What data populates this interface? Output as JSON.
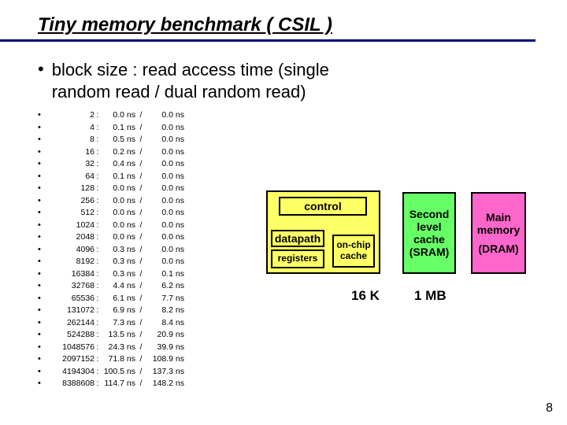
{
  "title": "Tiny memory benchmark ( CSIL )",
  "subtitle_line1": "block size : read access time (single",
  "subtitle_line2": "random read / dual random read)",
  "rows": [
    {
      "size": "2",
      "v1": "0.0 ns",
      "v2": "0.0 ns"
    },
    {
      "size": "4",
      "v1": "0.1 ns",
      "v2": "0.0 ns"
    },
    {
      "size": "8",
      "v1": "0.5 ns",
      "v2": "0.0 ns"
    },
    {
      "size": "16",
      "v1": "0.2 ns",
      "v2": "0.0 ns"
    },
    {
      "size": "32",
      "v1": "0.4 ns",
      "v2": "0.0 ns"
    },
    {
      "size": "64",
      "v1": "0.1 ns",
      "v2": "0.0 ns"
    },
    {
      "size": "128",
      "v1": "0.0 ns",
      "v2": "0.0 ns"
    },
    {
      "size": "256",
      "v1": "0.0 ns",
      "v2": "0.0 ns"
    },
    {
      "size": "512",
      "v1": "0.0 ns",
      "v2": "0.0 ns"
    },
    {
      "size": "1024",
      "v1": "0.0 ns",
      "v2": "0.0 ns"
    },
    {
      "size": "2048",
      "v1": "0.0 ns",
      "v2": "0.0 ns"
    },
    {
      "size": "4096",
      "v1": "0.3 ns",
      "v2": "0.0 ns"
    },
    {
      "size": "8192",
      "v1": "0.3 ns",
      "v2": "0.0 ns"
    },
    {
      "size": "16384",
      "v1": "0.3 ns",
      "v2": "0.1 ns"
    },
    {
      "size": "32768",
      "v1": "4.4 ns",
      "v2": "6.2 ns"
    },
    {
      "size": "65536",
      "v1": "6.1 ns",
      "v2": "7.7 ns"
    },
    {
      "size": "131072",
      "v1": "6.9 ns",
      "v2": "8.2 ns"
    },
    {
      "size": "262144",
      "v1": "7.3 ns",
      "v2": "8.4 ns"
    },
    {
      "size": "524288",
      "v1": "13.5 ns",
      "v2": "20.9 ns"
    },
    {
      "size": "1048576",
      "v1": "24.3 ns",
      "v2": "39.9 ns"
    },
    {
      "size": "2097152",
      "v1": "71.8 ns",
      "v2": "108.9 ns"
    },
    {
      "size": "4194304",
      "v1": "100.5 ns",
      "v2": "137.3 ns"
    },
    {
      "size": "8388608",
      "v1": "114.7 ns",
      "v2": "148.2 ns"
    }
  ],
  "diagram": {
    "control": "control",
    "datapath": "datapath",
    "registers": "registers",
    "onchip_l1": "on-chip",
    "onchip_l2": "cache",
    "l2_l1": "Second",
    "l2_l2": "level",
    "l2_l3": "cache",
    "l2_l4": "(SRAM)",
    "main_l1": "Main",
    "main_l2": "memory",
    "main_l3": "(DRAM)",
    "cap_16k": "16 K",
    "cap_1mb": "1 MB"
  },
  "pagenum": "8",
  "colors": {
    "underline": "#000080",
    "cpu_bg": "#ffff66",
    "l2_bg": "#66ff66",
    "main_bg": "#ff66cc"
  }
}
